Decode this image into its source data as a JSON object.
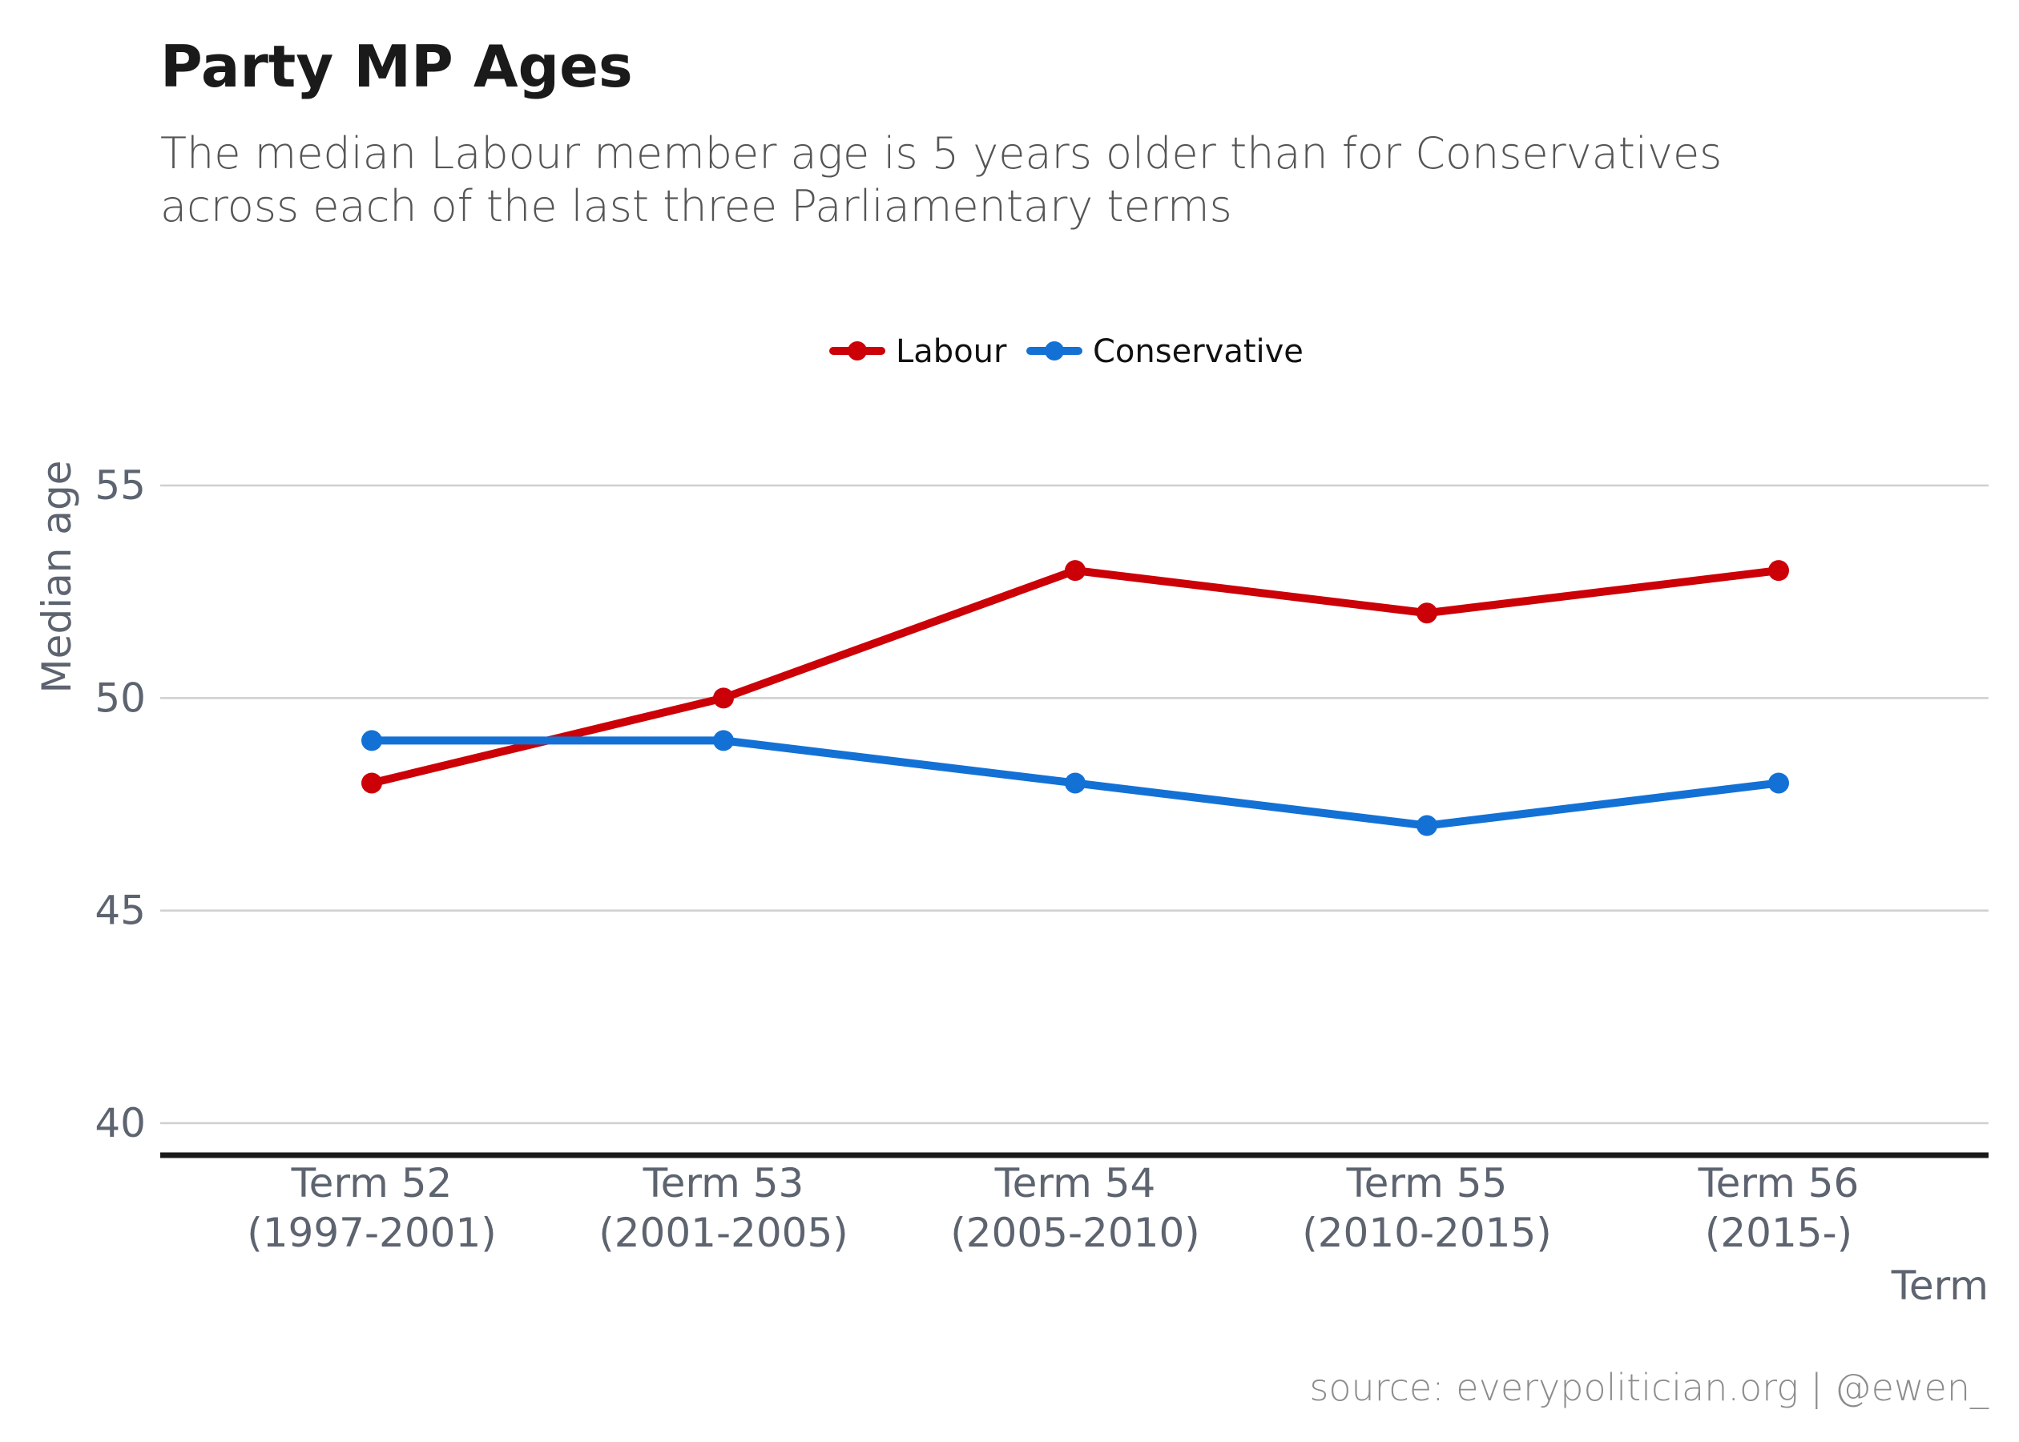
{
  "chart_data": {
    "type": "line",
    "title": "Party MP Ages",
    "subtitle_lines": [
      "The median Labour member age is 5 years older than for Conservatives",
      "across each of the last three Parliamentary terms"
    ],
    "xlabel": "Term",
    "ylabel": "Median age",
    "categories": [
      [
        "Term 52",
        "(1997-2001)"
      ],
      [
        "Term 53",
        "(2001-2005)"
      ],
      [
        "Term 54",
        "(2005-2010)"
      ],
      [
        "Term 55",
        "(2010-2015)"
      ],
      [
        "Term 56",
        "(2015-)"
      ]
    ],
    "yticks": [
      40,
      45,
      50,
      55
    ],
    "ylim": [
      40,
      55
    ],
    "grid": true,
    "legend_position": "top",
    "series": [
      {
        "name": "Labour",
        "color": "#cc0007",
        "values": [
          48,
          50,
          53,
          52,
          53
        ]
      },
      {
        "name": "Conservative",
        "color": "#1371d6",
        "values": [
          49,
          49,
          48,
          47,
          48
        ]
      }
    ],
    "source": "source: everypolitician.org | @ewen_"
  }
}
